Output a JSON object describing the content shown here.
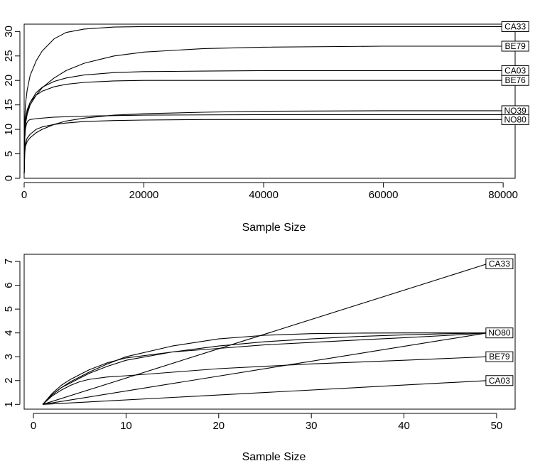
{
  "chart_data": [
    {
      "type": "line",
      "title": "",
      "xlabel": "Sample Size",
      "ylabel": "",
      "xlim": [
        0,
        82000
      ],
      "ylim": [
        0,
        31.5
      ],
      "xticks": [
        0,
        20000,
        40000,
        60000,
        80000
      ],
      "yticks": [
        0,
        5,
        10,
        15,
        20,
        25,
        30
      ],
      "grid": false,
      "legend": "curve-end-labels",
      "series": [
        {
          "name": "CA33",
          "x": [
            1,
            100,
            200,
            500,
            1000,
            2000,
            3000,
            5000,
            7000,
            10000,
            15000,
            20000,
            30000,
            40000,
            60000,
            80000
          ],
          "y": [
            1,
            11,
            15,
            18,
            21,
            24,
            26,
            28.5,
            29.8,
            30.5,
            30.9,
            31,
            31,
            31,
            31,
            31
          ]
        },
        {
          "name": "BE79",
          "x": [
            1,
            100,
            200,
            500,
            1000,
            2000,
            3000,
            5000,
            7000,
            10000,
            15000,
            20000,
            30000,
            40000,
            60000,
            80000
          ],
          "y": [
            1,
            8,
            11,
            13,
            15,
            17,
            18.5,
            20.5,
            22,
            23.5,
            25,
            25.8,
            26.5,
            26.8,
            27,
            27
          ]
        },
        {
          "name": "CA03",
          "x": [
            1,
            100,
            200,
            500,
            1000,
            2000,
            3000,
            5000,
            7000,
            10000,
            15000,
            20000,
            30000,
            40000,
            60000,
            80000
          ],
          "y": [
            1,
            8,
            11,
            13.5,
            15.5,
            17.5,
            18.6,
            19.8,
            20.5,
            21.1,
            21.6,
            21.8,
            21.9,
            22,
            22,
            22
          ]
        },
        {
          "name": "BE76",
          "x": [
            1,
            100,
            200,
            500,
            1000,
            2000,
            3000,
            5000,
            7000,
            10000,
            15000,
            20000,
            30000,
            40000,
            60000,
            80000
          ],
          "y": [
            1,
            9,
            12,
            14,
            15.5,
            17,
            17.8,
            18.7,
            19.2,
            19.6,
            19.9,
            20,
            20,
            20,
            20,
            20
          ]
        },
        {
          "name": "NO39",
          "x": [
            1,
            100,
            200,
            500,
            1000,
            2000,
            3000,
            5000,
            7000,
            10000,
            15000,
            20000,
            30000,
            40000,
            60000,
            80000
          ],
          "y": [
            1,
            5,
            6.5,
            7.5,
            8.3,
            9.3,
            10,
            11,
            11.7,
            12.3,
            12.9,
            13.2,
            13.5,
            13.7,
            13.8,
            13.8
          ]
        },
        {
          "name": "NO80",
          "x": [
            1,
            100,
            200,
            500,
            1000,
            2000,
            3000,
            5000,
            7000,
            10000,
            15000,
            20000,
            30000,
            40000,
            60000,
            80000
          ],
          "y": [
            1,
            5.5,
            7,
            8.2,
            9,
            10,
            10.5,
            11,
            11.3,
            11.6,
            11.8,
            11.9,
            12,
            12,
            12,
            12
          ]
        },
        {
          "name": "",
          "x": [
            1,
            100,
            200,
            400,
            700,
            1000,
            2000,
            5000,
            10000,
            20000,
            40000,
            80000
          ],
          "y": [
            1,
            8,
            10,
            11.2,
            11.8,
            12,
            12.2,
            12.5,
            12.7,
            12.9,
            13,
            13
          ]
        }
      ]
    },
    {
      "type": "line",
      "title": "",
      "xlabel": "Sample Size",
      "ylabel": "",
      "xlim": [
        -1,
        52
      ],
      "ylim": [
        0.8,
        7.3
      ],
      "xticks": [
        0,
        10,
        20,
        30,
        40,
        50
      ],
      "yticks": [
        1,
        2,
        3,
        4,
        5,
        6,
        7
      ],
      "grid": false,
      "legend": "curve-end-labels",
      "series": [
        {
          "name": "CA33",
          "x": [
            1,
            49
          ],
          "y": [
            1,
            6.9
          ]
        },
        {
          "name": "NO80",
          "x": [
            1,
            2,
            3,
            4,
            5,
            6,
            8,
            10,
            15,
            20,
            25,
            30,
            35,
            40,
            45,
            49
          ],
          "y": [
            1,
            1.4,
            1.7,
            1.95,
            2.15,
            2.35,
            2.7,
            3,
            3.45,
            3.75,
            3.9,
            3.97,
            3.99,
            4,
            4,
            4
          ]
        },
        {
          "name": "",
          "x": [
            1,
            2,
            3,
            4,
            5,
            6,
            8,
            10,
            15,
            20,
            25,
            30,
            35,
            40,
            45,
            49
          ],
          "y": [
            1,
            1.4,
            1.7,
            1.9,
            2.1,
            2.3,
            2.6,
            2.85,
            3.2,
            3.45,
            3.63,
            3.75,
            3.85,
            3.92,
            3.97,
            4
          ]
        },
        {
          "name": "",
          "x": [
            1,
            49
          ],
          "y": [
            1,
            4
          ]
        },
        {
          "name": "BE79",
          "x": [
            1,
            2,
            3,
            4,
            5,
            6,
            8,
            10,
            15,
            20,
            30,
            40,
            49
          ],
          "y": [
            1,
            1.35,
            1.6,
            1.8,
            1.95,
            2.05,
            2.15,
            2.2,
            2.35,
            2.5,
            2.7,
            2.85,
            3
          ]
        },
        {
          "name": "CA03",
          "x": [
            1,
            49
          ],
          "y": [
            1,
            2
          ]
        },
        {
          "name": "",
          "x": [
            1,
            2,
            3,
            4,
            5,
            6,
            8,
            10,
            15,
            20,
            25,
            30,
            35,
            40,
            45,
            49
          ],
          "y": [
            1,
            1.45,
            1.8,
            2.05,
            2.25,
            2.45,
            2.75,
            2.95,
            3.2,
            3.35,
            3.5,
            3.6,
            3.7,
            3.8,
            3.9,
            4
          ]
        }
      ]
    }
  ]
}
